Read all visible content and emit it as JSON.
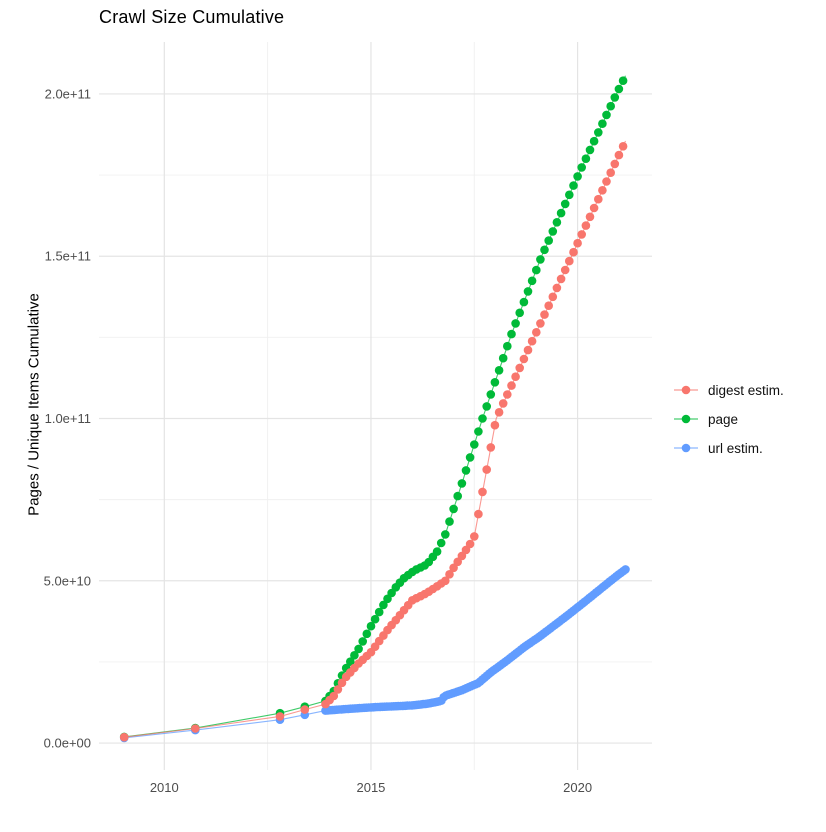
{
  "chart_data": {
    "type": "line",
    "markers": true,
    "title": "Crawl Size Cumulative",
    "xlabel": "",
    "ylabel": "Pages / Unique Items Cumulative",
    "grid": true,
    "legend_position": "right",
    "xlim": [
      2008.42,
      2021.8
    ],
    "ylim": [
      -8300000000,
      216000000000
    ],
    "x_ticks": {
      "values": [
        2010,
        2015,
        2020
      ],
      "labels": [
        "2010",
        "2015",
        "2020"
      ],
      "minor": [
        2012.5,
        2017.5
      ]
    },
    "y_ticks": {
      "values": [
        0,
        50000000000.0,
        100000000000.0,
        150000000000.0,
        200000000000.0
      ],
      "labels": [
        "0.0e+00",
        "5.0e+10",
        "1.0e+11",
        "1.5e+11",
        "2.0e+11"
      ],
      "minor": [
        25000000000.0,
        75000000000.0,
        125000000000.0,
        175000000000.0
      ]
    },
    "series": [
      {
        "name": "digest estim.",
        "color": "#F8766D",
        "dense_start": 2013.9,
        "dot_step": 0.1,
        "points": [
          [
            2009.03,
            1800000000.0
          ],
          [
            2010.75,
            4500000000.0
          ],
          [
            2012.8,
            8200000000.0
          ],
          [
            2013.4,
            10300000000.0
          ],
          [
            2013.9,
            12000000000.0
          ],
          [
            2014.1,
            14500000000.0
          ],
          [
            2014.37,
            20000000000.0
          ],
          [
            2014.7,
            24500000000.0
          ],
          [
            2015.0,
            28000000000.0
          ],
          [
            2015.4,
            34800000000.0
          ],
          [
            2016.0,
            44000000000.0
          ],
          [
            2016.35,
            46200000000.0
          ],
          [
            2016.8,
            50000000000.0
          ],
          [
            2017.0,
            54000000000.0
          ],
          [
            2017.49,
            63000000000.0
          ],
          [
            2018.03,
            100000000000.0
          ],
          [
            2019.4,
            137500000000.0
          ],
          [
            2020.0,
            154000000000.0
          ],
          [
            2021.16,
            185500000000.0
          ]
        ]
      },
      {
        "name": "page",
        "color": "#00BA38",
        "dense_start": 2013.9,
        "dot_step": 0.1,
        "points": [
          [
            2009.03,
            1900000000.0
          ],
          [
            2010.75,
            4600000000.0
          ],
          [
            2012.8,
            9200000000.0
          ],
          [
            2013.4,
            11200000000.0
          ],
          [
            2013.9,
            13000000000.0
          ],
          [
            2014.1,
            16000000000.0
          ],
          [
            2014.37,
            22500000000.0
          ],
          [
            2014.7,
            29000000000.0
          ],
          [
            2015.0,
            36000000000.0
          ],
          [
            2015.34,
            43400000000.0
          ],
          [
            2015.6,
            48000000000.0
          ],
          [
            2015.8,
            50800000000.0
          ],
          [
            2016.05,
            53200000000.0
          ],
          [
            2016.35,
            55000000000.0
          ],
          [
            2016.6,
            59000000000.0
          ],
          [
            2016.8,
            64300000000.0
          ],
          [
            2017.2,
            80000000000.0
          ],
          [
            2017.7,
            100000000000.0
          ],
          [
            2018.4,
            126000000000.0
          ],
          [
            2019.13,
            150000000000.0
          ],
          [
            2020.05,
            176000000000.0
          ],
          [
            2020.94,
            200000000000.0
          ],
          [
            2021.16,
            205600000000.0
          ]
        ]
      },
      {
        "name": "url estim.",
        "color": "#619CFF",
        "dense_start": 2013.9,
        "dot_step": 0.055,
        "points": [
          [
            2009.03,
            1600000000.0
          ],
          [
            2010.75,
            4000000000.0
          ],
          [
            2012.8,
            7200000000.0
          ],
          [
            2013.4,
            8700000000.0
          ],
          [
            2013.9,
            10000000000.0
          ],
          [
            2014.3,
            10400000000.0
          ],
          [
            2015.0,
            11000000000.0
          ],
          [
            2015.5,
            11300000000.0
          ],
          [
            2016.0,
            11600000000.0
          ],
          [
            2016.4,
            12200000000.0
          ],
          [
            2016.7,
            13000000000.0
          ],
          [
            2016.78,
            14500000000.0
          ],
          [
            2017.2,
            16300000000.0
          ],
          [
            2017.6,
            18500000000.0
          ],
          [
            2017.9,
            21800000000.0
          ],
          [
            2018.3,
            25500000000.0
          ],
          [
            2018.7,
            29500000000.0
          ],
          [
            2019.1,
            33000000000.0
          ],
          [
            2019.7,
            38800000000.0
          ],
          [
            2020.1,
            42800000000.0
          ],
          [
            2020.8,
            50000000000.0
          ],
          [
            2021.0,
            52000000000.0
          ],
          [
            2021.16,
            53500000000.0
          ]
        ]
      }
    ],
    "draw_order": [
      "page",
      "url estim.",
      "digest estim."
    ],
    "colors": {
      "grid_major": "#E4E4E4",
      "grid_minor": "#F0F0F0",
      "tick_label": "#4D4D4D",
      "title": "#000000"
    }
  }
}
